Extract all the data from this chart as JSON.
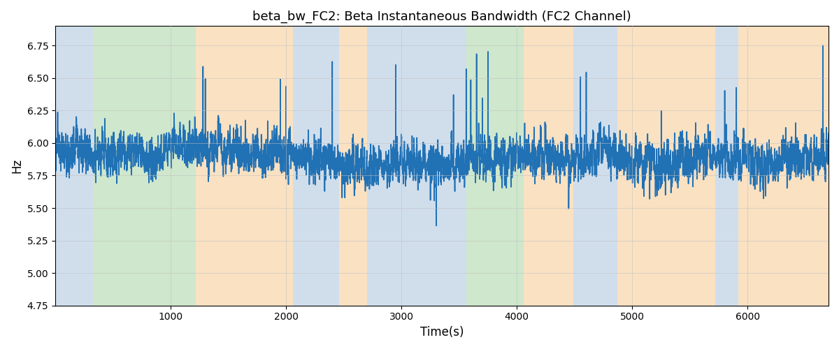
{
  "title": "beta_bw_FC2: Beta Instantaneous Bandwidth (FC2 Channel)",
  "xlabel": "Time(s)",
  "ylabel": "Hz",
  "xlim": [
    0,
    6700
  ],
  "ylim": [
    4.75,
    6.9
  ],
  "yticks": [
    4.75,
    5.0,
    5.25,
    5.5,
    5.75,
    6.0,
    6.25,
    6.5,
    6.75
  ],
  "xticks": [
    1000,
    2000,
    3000,
    4000,
    5000,
    6000
  ],
  "line_color": "#2171b5",
  "line_width": 1.2,
  "bg_regions": [
    {
      "start": 0,
      "end": 330,
      "color": "#aac4de",
      "alpha": 0.55
    },
    {
      "start": 330,
      "end": 1220,
      "color": "#a8d5a2",
      "alpha": 0.55
    },
    {
      "start": 1220,
      "end": 2060,
      "color": "#f5c990",
      "alpha": 0.55
    },
    {
      "start": 2060,
      "end": 2460,
      "color": "#aac4de",
      "alpha": 0.55
    },
    {
      "start": 2460,
      "end": 2700,
      "color": "#f5c990",
      "alpha": 0.55
    },
    {
      "start": 2700,
      "end": 3560,
      "color": "#aac4de",
      "alpha": 0.55
    },
    {
      "start": 3560,
      "end": 4060,
      "color": "#a8d5a2",
      "alpha": 0.55
    },
    {
      "start": 4060,
      "end": 4490,
      "color": "#f5c990",
      "alpha": 0.55
    },
    {
      "start": 4490,
      "end": 4870,
      "color": "#aac4de",
      "alpha": 0.55
    },
    {
      "start": 4870,
      "end": 5720,
      "color": "#f5c990",
      "alpha": 0.55
    },
    {
      "start": 5720,
      "end": 5920,
      "color": "#aac4de",
      "alpha": 0.55
    },
    {
      "start": 5920,
      "end": 6700,
      "color": "#f5c990",
      "alpha": 0.55
    }
  ],
  "n_points": 6700,
  "mean": 5.92,
  "grid_color": "#c0c0c0",
  "grid_alpha": 0.6
}
